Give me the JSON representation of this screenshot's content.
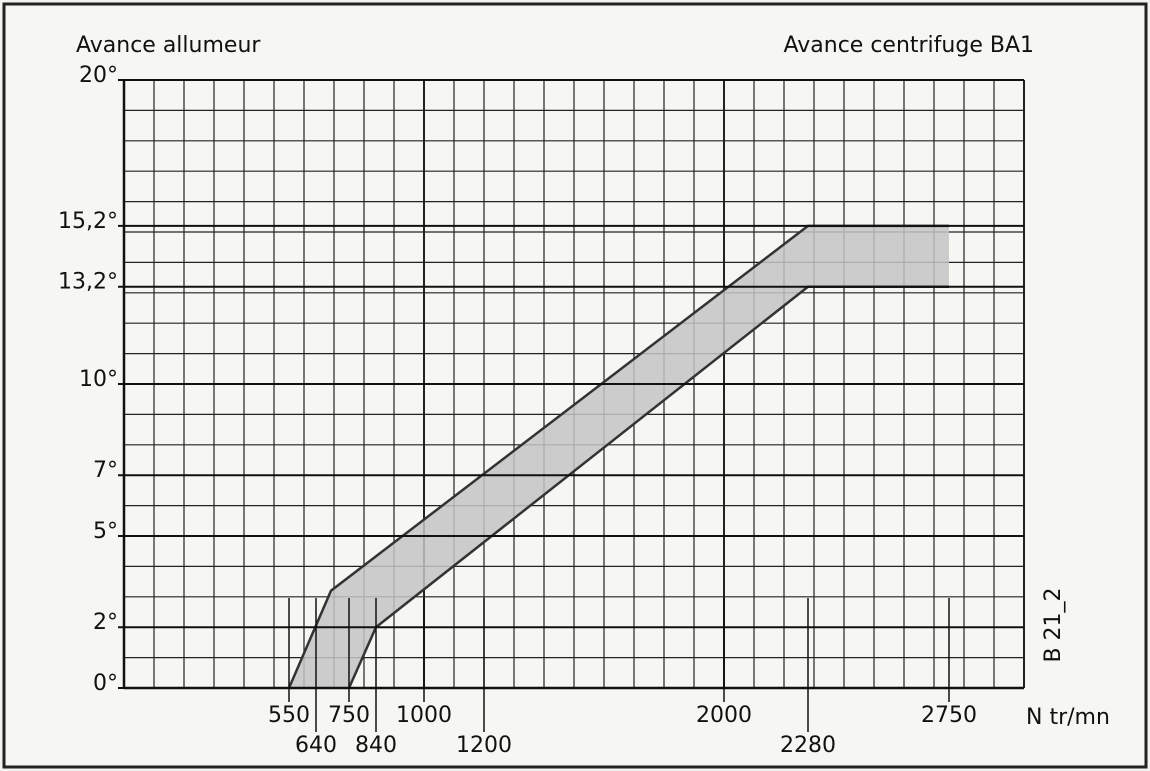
{
  "chart_data": {
    "type": "band",
    "title": "Avance allumeur",
    "subtitle": "Avance centrifuge BA1",
    "x_label": "N tr/mn",
    "annotation": "B 21_2",
    "series": [
      {
        "x": [
          550,
          690,
          2280,
          2750
        ],
        "values": [
          0,
          3.2,
          15.2,
          15.2
        ],
        "color": "#333333"
      },
      {
        "x": [
          750,
          840,
          2280,
          2750
        ],
        "values": [
          0,
          2,
          13.2,
          13.2
        ],
        "color": "#333333"
      }
    ],
    "band_color": "#c4c4c4",
    "xlim": [
      0,
      3000
    ],
    "ylim": [
      0,
      20
    ],
    "xticks": [
      550,
      640,
      750,
      840,
      1000,
      1200,
      2000,
      2280,
      2750
    ],
    "yticks": [
      {
        "value": 0,
        "label": "0°"
      },
      {
        "value": 2,
        "label": "2°"
      },
      {
        "value": 5,
        "label": "5°"
      },
      {
        "value": 7,
        "label": "7°"
      },
      {
        "value": 10,
        "label": "10°"
      },
      {
        "value": 13.2,
        "label": "13,2°"
      },
      {
        "value": 15.2,
        "label": "15,2°"
      },
      {
        "value": 20,
        "label": "20°"
      }
    ],
    "grid": true,
    "xgrid_step": 100,
    "ygrid_step": 1
  }
}
